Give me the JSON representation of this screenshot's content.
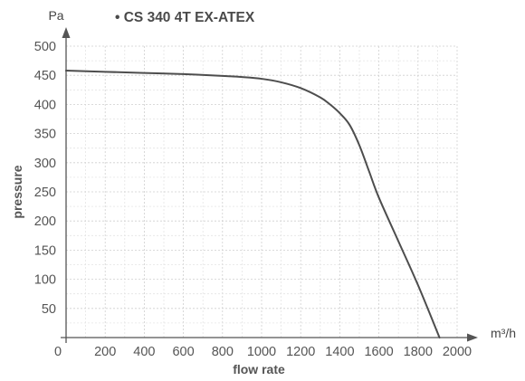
{
  "chart_data": {
    "type": "line",
    "title": "• CS 340 4T EX-ATEX",
    "xlabel": "flow rate",
    "ylabel": "pressure",
    "x_unit": "m³/h",
    "y_unit": "Pa",
    "origin_label": "0",
    "xlim": [
      0,
      2000
    ],
    "ylim": [
      0,
      500
    ],
    "x_ticks": [
      200,
      400,
      600,
      800,
      1000,
      1200,
      1400,
      1600,
      1800,
      2000
    ],
    "y_ticks": [
      50,
      100,
      150,
      200,
      250,
      300,
      350,
      400,
      450,
      500
    ],
    "grid": true,
    "series": [
      {
        "color": "#4d4d4d",
        "x": [
          0,
          200,
          400,
          600,
          800,
          900,
          1000,
          1100,
          1200,
          1300,
          1350,
          1400,
          1450,
          1500,
          1550,
          1600,
          1700,
          1800,
          1910
        ],
        "y": [
          458,
          456,
          454,
          452,
          449,
          447,
          444,
          438,
          428,
          412,
          400,
          385,
          365,
          330,
          285,
          240,
          165,
          90,
          0
        ]
      }
    ]
  }
}
